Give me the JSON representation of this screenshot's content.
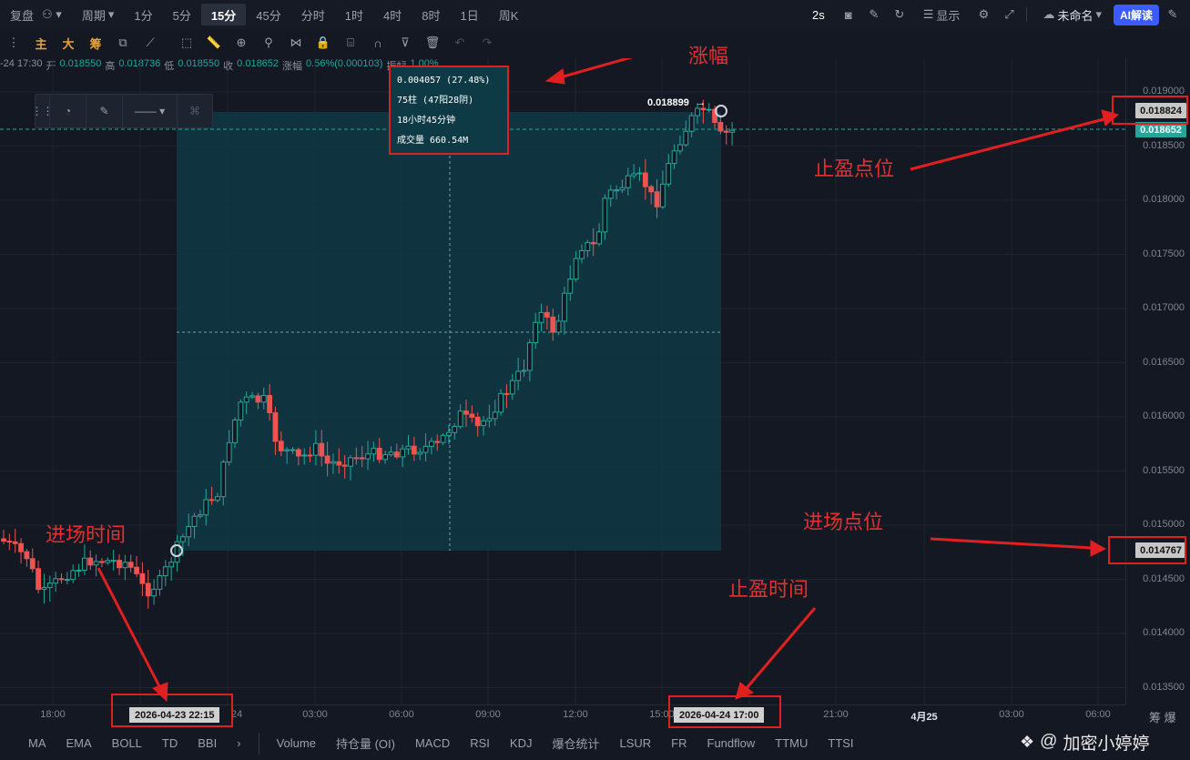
{
  "topbar": {
    "left_label": "复盘",
    "period_label": "周期",
    "intervals": [
      "1分",
      "5分",
      "15分",
      "45分",
      "分时",
      "1时",
      "4时",
      "8时",
      "1日",
      "周K"
    ],
    "active_interval": "15分",
    "refresh": "2s",
    "display_label": "显示",
    "layout_name": "未命名",
    "ai_label": "AI解读"
  },
  "toolbar": {
    "main": "主",
    "big": "大",
    "chip": "筹"
  },
  "info": {
    "time": "-24 17:30",
    "open_label": "开",
    "open": "0.018550",
    "high_label": "高",
    "high": "0.018736",
    "low_label": "低",
    "low": "0.018550",
    "close_label": "收",
    "close": "0.018652",
    "change_label": "涨幅",
    "change": "0.56%(0.000103)",
    "amp_label": "振幅",
    "amp": "1.00%"
  },
  "measure": {
    "line1": "0.004057 (27.48%)",
    "line2": "75柱 (47阳28阴)",
    "line3": "18小时45分钟",
    "line4": "成交量 660.54M",
    "peak_label": "0.018899"
  },
  "price_axis": {
    "ticks": [
      "0.019000",
      "0.018500",
      "0.018000",
      "0.017500",
      "0.017000",
      "0.016500",
      "0.016000",
      "0.015500",
      "0.015000",
      "0.014500",
      "0.014000",
      "0.013500"
    ],
    "tp_price": "0.018824",
    "last_price": "0.018652",
    "entry_price": "0.014767"
  },
  "time_axis": {
    "ticks": [
      "18:00",
      "03:00",
      "06:00",
      "09:00",
      "12:00",
      "15:00",
      "21:00",
      "4月25",
      "03:00",
      "06:00"
    ],
    "entry_time": "2026-04-23 22:15",
    "exit_time": "2026-04-24 17:00",
    "entry_time_tail": "24",
    "corner": "筹 爆"
  },
  "annotations": {
    "change": "涨幅",
    "tp_level": "止盈点位",
    "entry_level": "进场点位",
    "entry_time": "进场时间",
    "tp_time": "止盈时间"
  },
  "indicators": {
    "main": [
      "MA",
      "EMA",
      "BOLL",
      "TD",
      "BBI"
    ],
    "sub": [
      "Volume",
      "持仓量 (OI)",
      "MACD",
      "RSI",
      "KDJ",
      "爆仓统计",
      "LSUR",
      "FR",
      "Fundflow",
      "TTMU",
      "TTSI"
    ]
  },
  "watermark": "加密小婷婷",
  "colors": {
    "up": "#26a69a",
    "down": "#ef5350",
    "box": "#0e3a45",
    "annotation": "#e43030",
    "ai": "#3b5bff"
  },
  "chart_data": {
    "type": "candlestick",
    "interval": "15m",
    "ylim": [
      0.0133,
      0.0192
    ],
    "entry": 0.014767,
    "take_profit": 0.018824,
    "last": 0.018652,
    "change_pct": 27.48,
    "bars": 75
  }
}
